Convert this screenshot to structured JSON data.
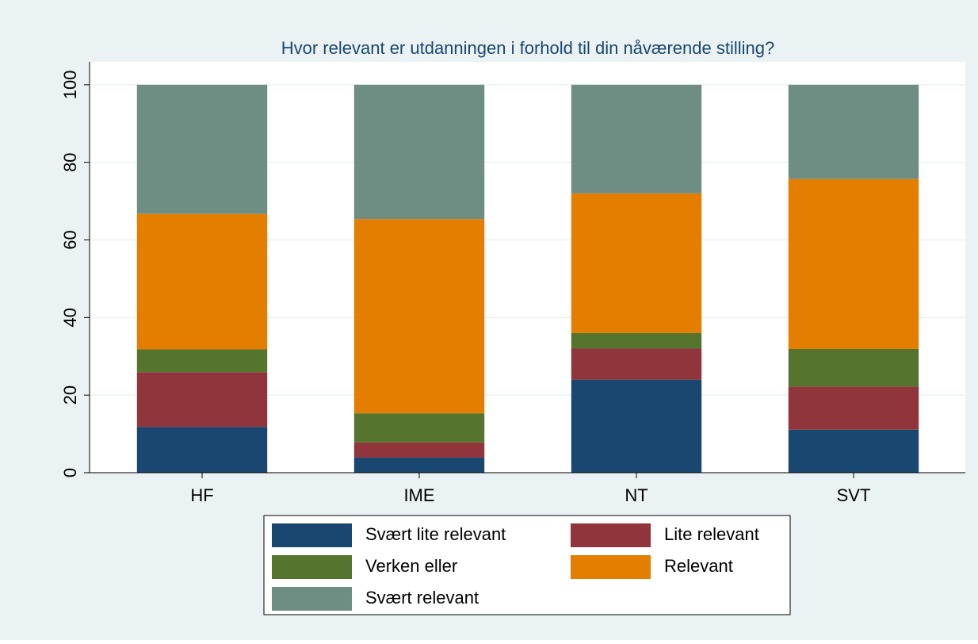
{
  "chart_data": {
    "type": "stacked_bar",
    "title": "Hvor relevant er utdanningen i forhold til din nåværende stilling?",
    "categories": [
      "HF",
      "IME",
      "NT",
      "SVT"
    ],
    "series": [
      {
        "name": "Svært lite relevant",
        "color": "#1a476f",
        "values": [
          11.8,
          3.9,
          24,
          11.1
        ]
      },
      {
        "name": "Lite relevant",
        "color": "#90353b",
        "values": [
          14.1,
          3.9,
          8,
          11.1
        ]
      },
      {
        "name": "Verken eller",
        "color": "#55752f",
        "values": [
          5.9,
          7.5,
          4,
          9.7
        ]
      },
      {
        "name": "Relevant",
        "color": "#e37e00",
        "values": [
          34.9,
          50.1,
          36,
          43.8
        ]
      },
      {
        "name": "Svært relevant",
        "color": "#6e8e84",
        "values": [
          33.3,
          34.6,
          28,
          24.3
        ]
      }
    ],
    "ylim": [
      0,
      105.9
    ],
    "yticks": [
      0,
      20,
      40,
      60,
      80,
      100
    ],
    "grid": true,
    "legend": "bottom"
  }
}
